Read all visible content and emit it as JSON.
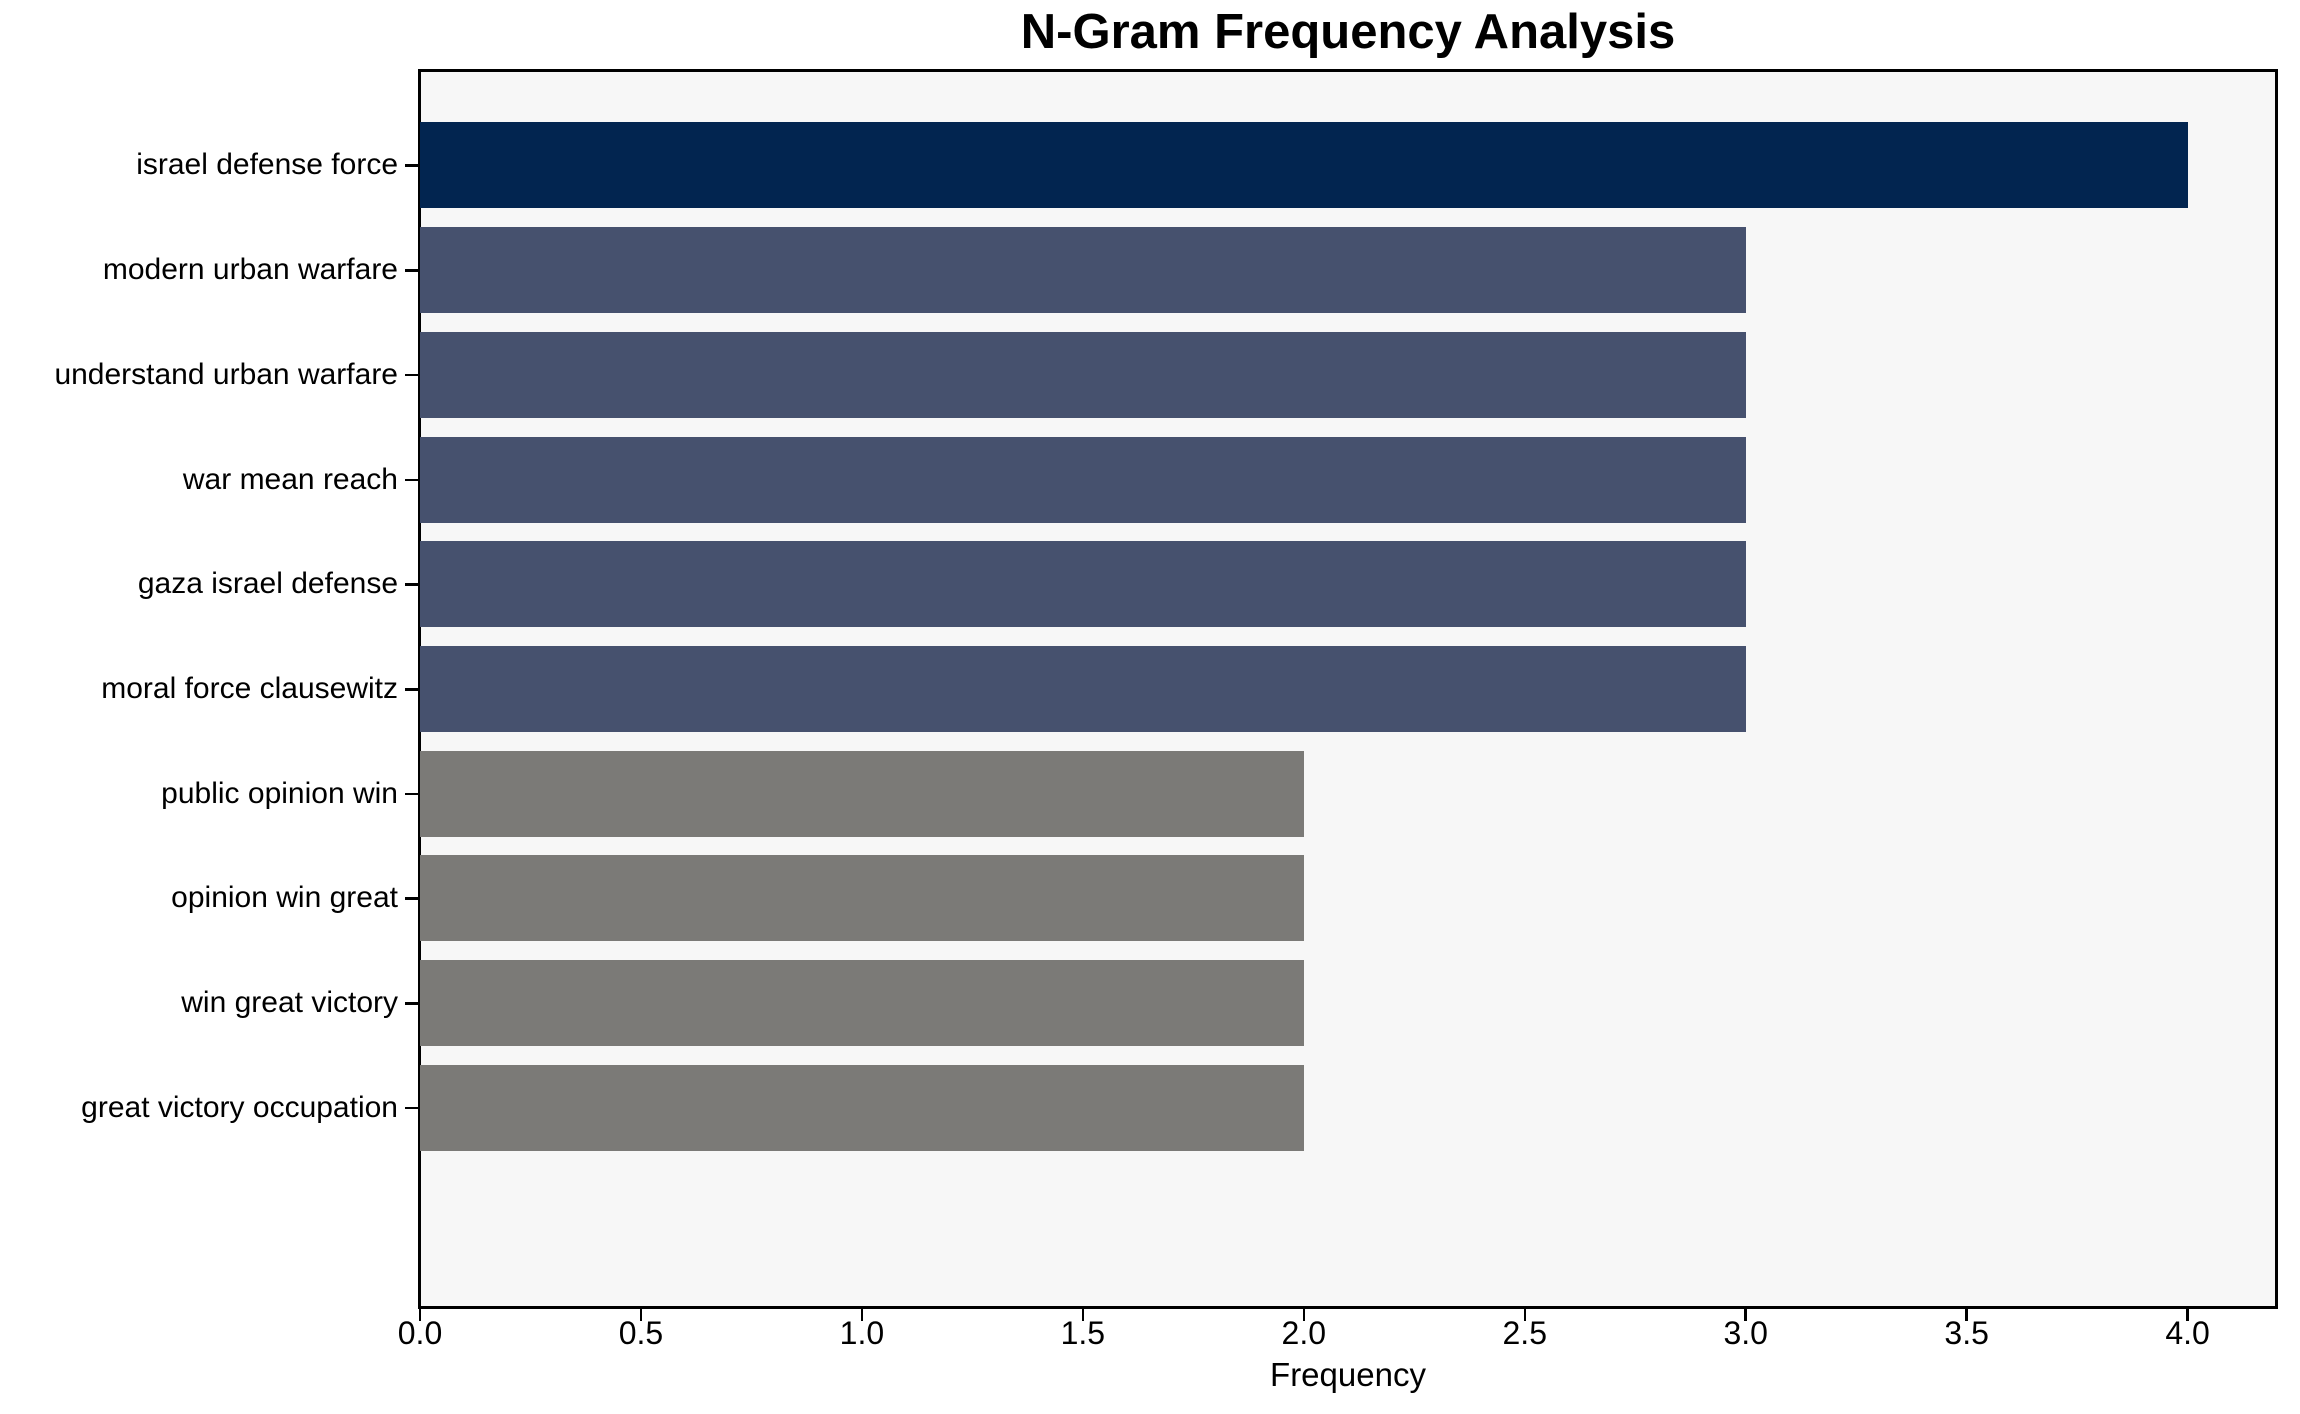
{
  "chart_data": {
    "type": "bar",
    "orientation": "horizontal",
    "title": "N-Gram Frequency Analysis",
    "xlabel": "Frequency",
    "ylabel": "",
    "categories": [
      "israel defense force",
      "modern urban warfare",
      "understand urban warfare",
      "war mean reach",
      "gaza israel defense",
      "moral force clausewitz",
      "public opinion win",
      "opinion win great",
      "win great victory",
      "great victory occupation"
    ],
    "values": [
      4,
      3,
      3,
      3,
      3,
      3,
      2,
      2,
      2,
      2
    ],
    "bar_colors": [
      "#022550",
      "#46516E",
      "#46516E",
      "#46516E",
      "#46516E",
      "#46516E",
      "#7B7A77",
      "#7B7A77",
      "#7B7A77",
      "#7B7A77"
    ],
    "color_legend": {
      "frequency_4": "#022550",
      "frequency_3": "#46516E",
      "frequency_2": "#7B7A77"
    },
    "xlim": [
      0,
      4.2
    ],
    "x_ticks": [
      "0.0",
      "0.5",
      "1.0",
      "1.5",
      "2.0",
      "2.5",
      "3.0",
      "3.5",
      "4.0"
    ],
    "grid": false,
    "legend": "none",
    "plot_background": "#F7F7F7",
    "text_color": "#000000"
  }
}
